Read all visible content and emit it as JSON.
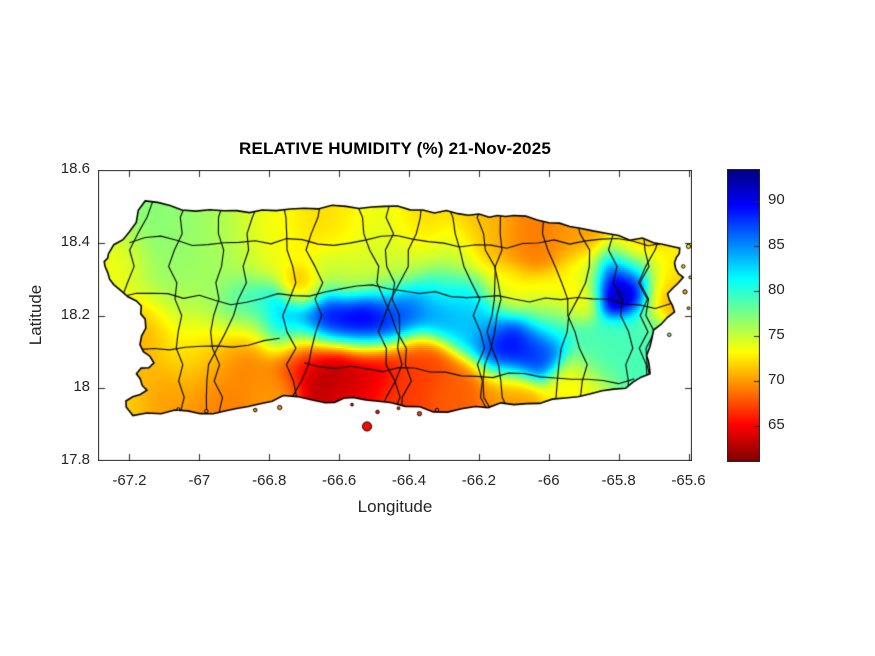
{
  "chart_data": {
    "type": "heatmap",
    "title": "RELATIVE HUMIDITY (%) 21-Nov-2025",
    "xlabel": "Longitude",
    "ylabel": "Latitude",
    "region": "Puerto Rico",
    "xlim": [
      -67.29,
      -65.59
    ],
    "ylim": [
      17.8,
      18.6
    ],
    "xticks": [
      -67.2,
      -67,
      -66.8,
      -66.6,
      -66.4,
      -66.2,
      -66,
      -65.8,
      -65.6
    ],
    "xtick_labels": [
      "-67.2",
      "-67",
      "-66.8",
      "-66.6",
      "-66.4",
      "-66.2",
      "-66",
      "-65.8",
      "-65.6"
    ],
    "yticks": [
      17.8,
      18,
      18.2,
      18.4,
      18.6
    ],
    "ytick_labels": [
      "17.8",
      "18",
      "18.2",
      "18.4",
      "18.6"
    ],
    "grid": false,
    "colorbar": {
      "min": 61,
      "max": 93.5,
      "ticks": [
        65,
        70,
        75,
        80,
        85,
        90
      ],
      "tick_labels": [
        "65",
        "70",
        "75",
        "80",
        "85",
        "90"
      ],
      "colormap": "jet-reversed",
      "position": "right"
    },
    "colors": {
      "background": "#ffffff",
      "axis": "#262626",
      "title": "#000000",
      "coastline": "#000000",
      "boundaries": "#0d0d0d"
    },
    "humidity_points": [
      [
        -67.1,
        18.4,
        77,
        0.09
      ],
      [
        -66.93,
        18.42,
        76,
        0.08
      ],
      [
        -67.05,
        18.26,
        76,
        0.08
      ],
      [
        -67.22,
        18.34,
        73,
        0.05
      ],
      [
        -67.16,
        18.17,
        70,
        0.055
      ],
      [
        -67.19,
        18.03,
        71,
        0.06
      ],
      [
        -67.1,
        17.97,
        70,
        0.05
      ],
      [
        -67.0,
        18.1,
        72,
        0.07
      ],
      [
        -66.93,
        18.0,
        69,
        0.06
      ],
      [
        -66.87,
        18.12,
        68,
        0.05
      ],
      [
        -67.23,
        17.96,
        72,
        0.05
      ],
      [
        -66.8,
        18.44,
        73,
        0.07
      ],
      [
        -66.62,
        18.46,
        72,
        0.06
      ],
      [
        -66.5,
        18.43,
        74,
        0.07
      ],
      [
        -66.35,
        18.46,
        72,
        0.06
      ],
      [
        -66.45,
        18.33,
        75,
        0.06
      ],
      [
        -66.6,
        18.32,
        75,
        0.05
      ],
      [
        -66.7,
        18.27,
        70,
        0.035
      ],
      [
        -66.3,
        18.27,
        80,
        0.045
      ],
      [
        -66.28,
        18.37,
        75,
        0.05
      ],
      [
        -66.18,
        18.43,
        71,
        0.055
      ],
      [
        -66.05,
        18.41,
        69,
        0.055
      ],
      [
        -65.92,
        18.41,
        70,
        0.05
      ],
      [
        -65.76,
        18.37,
        70,
        0.045
      ],
      [
        -66.87,
        18.2,
        80,
        0.055
      ],
      [
        -66.75,
        18.17,
        84,
        0.05
      ],
      [
        -66.64,
        18.19,
        90,
        0.05
      ],
      [
        -66.52,
        18.17,
        91,
        0.05
      ],
      [
        -66.42,
        18.21,
        88,
        0.05
      ],
      [
        -66.32,
        18.21,
        85,
        0.045
      ],
      [
        -66.21,
        18.19,
        83,
        0.055
      ],
      [
        -66.12,
        18.11,
        90,
        0.05
      ],
      [
        -66.03,
        18.1,
        88,
        0.04
      ],
      [
        -65.99,
        18.19,
        80,
        0.05
      ],
      [
        -66.12,
        18.27,
        73,
        0.045
      ],
      [
        -66.0,
        18.25,
        72,
        0.04
      ],
      [
        -65.93,
        18.25,
        72,
        0.04
      ],
      [
        -65.9,
        18.32,
        74,
        0.04
      ],
      [
        -65.79,
        18.3,
        93,
        0.05
      ],
      [
        -65.66,
        18.31,
        73,
        0.04
      ],
      [
        -65.63,
        18.24,
        70,
        0.05
      ],
      [
        -65.72,
        18.12,
        79,
        0.055
      ],
      [
        -65.85,
        18.09,
        79,
        0.05
      ],
      [
        -65.92,
        18.0,
        73,
        0.05
      ],
      [
        -66.62,
        18.04,
        62,
        0.055
      ],
      [
        -66.51,
        18.06,
        63,
        0.05
      ],
      [
        -66.71,
        18.09,
        65,
        0.05
      ],
      [
        -66.57,
        17.98,
        65,
        0.05
      ],
      [
        -66.43,
        18.0,
        67,
        0.055
      ],
      [
        -66.37,
        18.08,
        67,
        0.05
      ],
      [
        -66.25,
        17.99,
        68,
        0.055
      ],
      [
        -66.12,
        17.98,
        70,
        0.05
      ],
      [
        -66.8,
        18.0,
        70,
        0.05
      ]
    ],
    "coastline": [
      [
        -67.155,
        18.515
      ],
      [
        -67.05,
        18.49
      ],
      [
        -66.93,
        18.488
      ],
      [
        -66.82,
        18.49
      ],
      [
        -66.7,
        18.495
      ],
      [
        -66.58,
        18.5
      ],
      [
        -66.47,
        18.5
      ],
      [
        -66.36,
        18.49
      ],
      [
        -66.26,
        18.48
      ],
      [
        -66.17,
        18.47
      ],
      [
        -66.1,
        18.475
      ],
      [
        -66.0,
        18.455
      ],
      [
        -65.91,
        18.44
      ],
      [
        -65.8,
        18.42
      ],
      [
        -65.7,
        18.4
      ],
      [
        -65.625,
        18.385
      ],
      [
        -65.64,
        18.345
      ],
      [
        -65.615,
        18.305
      ],
      [
        -65.66,
        18.26
      ],
      [
        -65.64,
        18.21
      ],
      [
        -65.7,
        18.16
      ],
      [
        -65.72,
        18.09
      ],
      [
        -65.71,
        18.04
      ],
      [
        -65.78,
        18.0
      ],
      [
        -65.88,
        17.985
      ],
      [
        -65.99,
        17.97
      ],
      [
        -66.1,
        17.955
      ],
      [
        -66.21,
        17.95
      ],
      [
        -66.33,
        17.935
      ],
      [
        -66.45,
        17.96
      ],
      [
        -66.56,
        17.975
      ],
      [
        -66.64,
        17.96
      ],
      [
        -66.76,
        17.98
      ],
      [
        -66.86,
        17.95
      ],
      [
        -66.96,
        17.93
      ],
      [
        -67.07,
        17.94
      ],
      [
        -67.19,
        17.925
      ],
      [
        -67.21,
        17.965
      ],
      [
        -67.15,
        17.995
      ],
      [
        -67.18,
        18.04
      ],
      [
        -67.13,
        18.07
      ],
      [
        -67.17,
        18.12
      ],
      [
        -67.155,
        18.19
      ],
      [
        -67.18,
        18.24
      ],
      [
        -67.245,
        18.285
      ],
      [
        -67.27,
        18.335
      ],
      [
        -67.26,
        18.37
      ],
      [
        -67.2,
        18.43
      ]
    ],
    "islets": [
      [
        -66.52,
        17.895,
        0.013
      ],
      [
        -66.49,
        17.935,
        0.005
      ],
      [
        -66.37,
        17.93,
        0.006
      ],
      [
        -66.32,
        17.94,
        0.005
      ],
      [
        -66.43,
        17.945,
        0.004
      ],
      [
        -66.77,
        17.947,
        0.006
      ],
      [
        -66.84,
        17.94,
        0.005
      ],
      [
        -66.98,
        17.937,
        0.005
      ],
      [
        -67.06,
        17.943,
        0.004
      ],
      [
        -65.6,
        18.39,
        0.006
      ],
      [
        -65.615,
        18.335,
        0.005
      ],
      [
        -65.595,
        18.305,
        0.004
      ],
      [
        -65.61,
        18.265,
        0.006
      ],
      [
        -65.6,
        18.22,
        0.004
      ],
      [
        -65.655,
        18.147,
        0.005
      ],
      [
        -66.563,
        17.955,
        0.004
      ]
    ],
    "boundaries": {
      "seed": 20251121,
      "vertical_lons": [
        -67.13,
        -67.03,
        -66.94,
        -66.84,
        -66.74,
        -66.66,
        -66.57,
        -66.47,
        -66.38,
        -66.29,
        -66.2,
        -66.11,
        -66.02,
        -65.93,
        -65.84,
        -65.75,
        -65.67
      ],
      "horizontal_segments": [
        [
          18.4,
          -67.2,
          -65.66
        ],
        [
          18.26,
          -67.27,
          -65.61
        ],
        [
          18.12,
          -67.22,
          -66.75
        ],
        [
          18.07,
          -66.7,
          -65.72
        ]
      ]
    }
  }
}
